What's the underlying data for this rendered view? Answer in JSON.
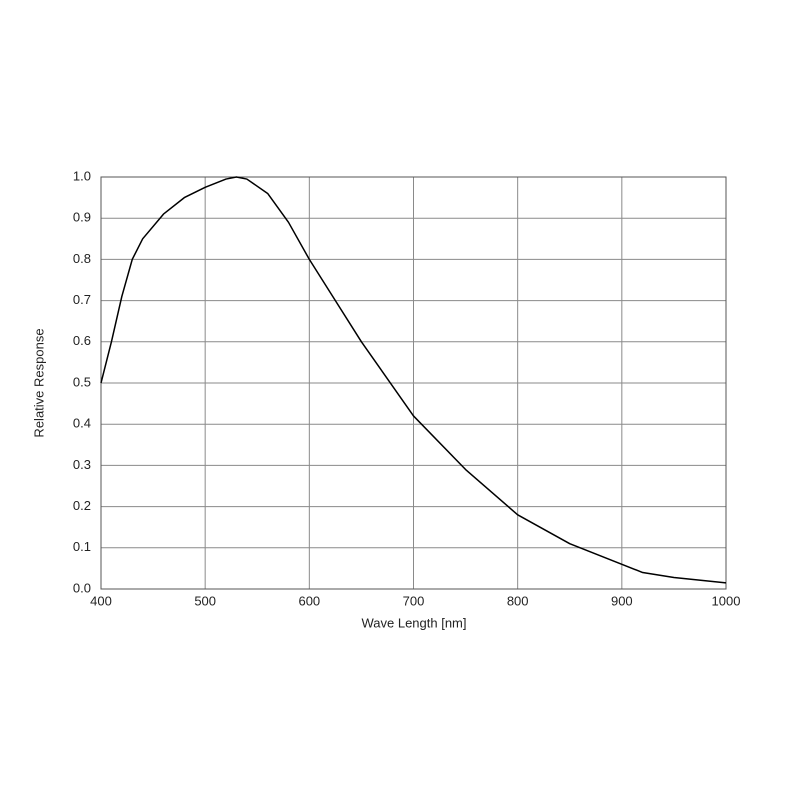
{
  "chart_data": {
    "type": "line",
    "xlabel": "Wave Length [nm]",
    "ylabel": "Relative Response",
    "x": [
      400,
      410,
      420,
      430,
      440,
      460,
      480,
      500,
      520,
      530,
      540,
      560,
      580,
      600,
      620,
      650,
      700,
      750,
      800,
      850,
      900,
      920,
      950,
      1000
    ],
    "values": [
      0.5,
      0.6,
      0.71,
      0.8,
      0.85,
      0.91,
      0.95,
      0.975,
      0.995,
      1.0,
      0.995,
      0.96,
      0.89,
      0.8,
      0.72,
      0.6,
      0.42,
      0.29,
      0.18,
      0.11,
      0.06,
      0.04,
      0.028,
      0.015
    ],
    "color": "#000000",
    "xlim": [
      400,
      1000
    ],
    "ylim": [
      0,
      1
    ],
    "xticks": [
      400,
      500,
      600,
      700,
      800,
      900,
      1000
    ],
    "yticks": [
      {
        "value": 0,
        "label": "0.0"
      },
      0.1,
      0.2,
      0.3,
      0.4,
      0.5,
      0.6,
      0.7,
      0.8,
      0.9,
      {
        "value": 1,
        "label": "1.0"
      }
    ],
    "grid": true
  }
}
